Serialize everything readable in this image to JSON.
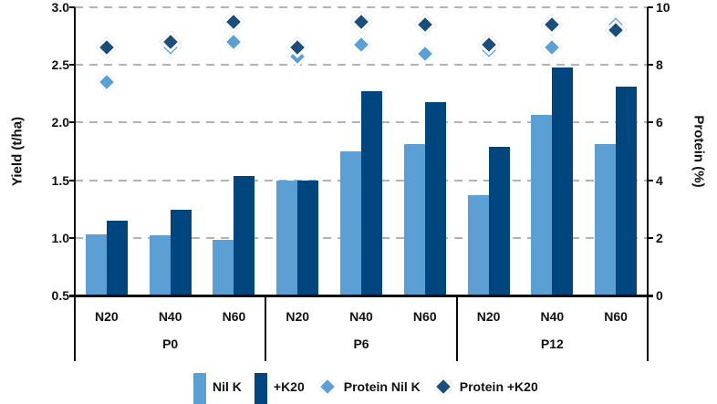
{
  "chart_data": {
    "type": "grouped-bar-with-scatter",
    "title": "",
    "left_axis": {
      "label": "Yield (t/ha)",
      "min": 0.5,
      "max": 3.0,
      "ticks": [
        0.5,
        1.0,
        1.5,
        2.0,
        2.5,
        3.0
      ],
      "tick_labels": [
        "0.5",
        "1.0",
        "1.5",
        "2.0",
        "2.5",
        "3.0"
      ]
    },
    "right_axis": {
      "label": "Protein (%)",
      "min": 0,
      "max": 10,
      "ticks": [
        0,
        2,
        4,
        6,
        8,
        10
      ],
      "tick_labels": [
        "0",
        "2",
        "4",
        "6",
        "8",
        "10"
      ]
    },
    "groups": [
      "P0",
      "P6",
      "P12"
    ],
    "subgroups": [
      "N20",
      "N40",
      "N60"
    ],
    "grid": "dashed-horizontal",
    "gridline_color": "#b3b3b3",
    "legend_position": "bottom",
    "series": [
      {
        "name": "Nil K",
        "type": "bar",
        "axis": "left",
        "color": "#5B9FD4",
        "values": [
          [
            1.03,
            1.02,
            0.98
          ],
          [
            1.5,
            1.75,
            1.81
          ],
          [
            1.37,
            2.07,
            1.81
          ]
        ]
      },
      {
        "name": "+K20",
        "type": "bar",
        "axis": "left",
        "color": "#00467E",
        "values": [
          [
            1.15,
            1.24,
            1.54
          ],
          [
            1.5,
            2.27,
            2.18
          ],
          [
            1.79,
            2.48,
            2.31
          ]
        ]
      },
      {
        "name": "Protein Nil K",
        "type": "diamond",
        "axis": "right",
        "color": "#5B9FD4",
        "values": [
          [
            7.4,
            8.6,
            8.8
          ],
          [
            8.3,
            8.7,
            8.4
          ],
          [
            8.5,
            8.6,
            9.4
          ]
        ]
      },
      {
        "name": "Protein +K20",
        "type": "diamond",
        "axis": "right",
        "color": "#1B4E7C",
        "values": [
          [
            8.6,
            8.8,
            9.5
          ],
          [
            8.6,
            9.5,
            9.4
          ],
          [
            8.7,
            9.4,
            9.2
          ]
        ]
      }
    ]
  }
}
